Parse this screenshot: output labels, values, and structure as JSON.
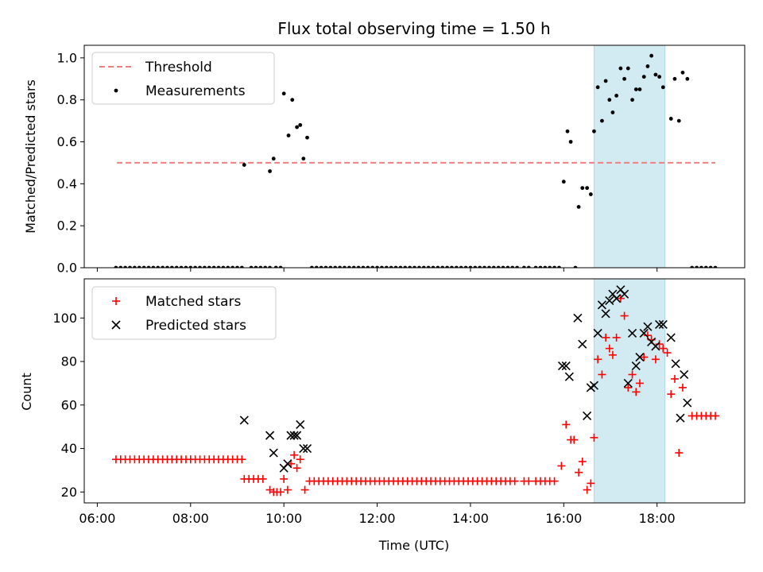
{
  "chart_data": {
    "title": "Flux total observing time = 1.50 h",
    "xlabel": "Time (UTC)",
    "x_range_hours": [
      5.72,
      19.88
    ],
    "x_ticks": [
      {
        "h": 6,
        "label": "06:00"
      },
      {
        "h": 8,
        "label": "08:00"
      },
      {
        "h": 10,
        "label": "10:00"
      },
      {
        "h": 12,
        "label": "12:00"
      },
      {
        "h": 14,
        "label": "14:00"
      },
      {
        "h": 16,
        "label": "16:00"
      },
      {
        "h": 18,
        "label": "18:00"
      }
    ],
    "shaded_span_hours": [
      16.65,
      18.17
    ],
    "shade_color": "#add8e6",
    "panels": [
      {
        "type": "scatter",
        "ylabel": "Matched/Predicted stars",
        "ylim": [
          0,
          1.06
        ],
        "yticks": [
          0.0,
          0.2,
          0.4,
          0.6,
          0.8,
          1.0
        ],
        "ytick_labels": [
          "0.0",
          "0.2",
          "0.4",
          "0.6",
          "0.8",
          "1.0"
        ],
        "legend": [
          {
            "label": "Threshold",
            "style": "dashed-line",
            "color": "#f08080"
          },
          {
            "label": "Measurements",
            "style": "dot",
            "color": "#000000"
          }
        ],
        "threshold": {
          "value": 0.5,
          "x_start": 6.42,
          "x_end": 19.25
        },
        "zeros_hours": [
          [
            6.4,
            9.1,
            0.1
          ],
          [
            9.3,
            9.72,
            0.1
          ],
          [
            9.83,
            9.93,
            0.1
          ],
          [
            10.6,
            15.0,
            0.1
          ],
          [
            15.15,
            15.25,
            0.1
          ],
          [
            15.4,
            15.95,
            0.1
          ],
          [
            16.25,
            16.25,
            0.1
          ],
          [
            18.75,
            19.25,
            0.1
          ]
        ],
        "measurements": [
          [
            9.15,
            0.49
          ],
          [
            9.7,
            0.46
          ],
          [
            9.78,
            0.52
          ],
          [
            10.0,
            0.83
          ],
          [
            10.1,
            0.63
          ],
          [
            10.18,
            0.8
          ],
          [
            10.28,
            0.67
          ],
          [
            10.35,
            0.68
          ],
          [
            10.42,
            0.52
          ],
          [
            10.5,
            0.62
          ],
          [
            16.0,
            0.41
          ],
          [
            16.08,
            0.65
          ],
          [
            16.15,
            0.6
          ],
          [
            16.32,
            0.29
          ],
          [
            16.4,
            0.38
          ],
          [
            16.5,
            0.38
          ],
          [
            16.58,
            0.35
          ],
          [
            16.65,
            0.65
          ],
          [
            16.73,
            0.86
          ],
          [
            16.82,
            0.7
          ],
          [
            16.9,
            0.89
          ],
          [
            16.98,
            0.8
          ],
          [
            17.05,
            0.74
          ],
          [
            17.13,
            0.82
          ],
          [
            17.22,
            0.95
          ],
          [
            17.3,
            0.9
          ],
          [
            17.38,
            0.95
          ],
          [
            17.47,
            0.8
          ],
          [
            17.55,
            0.85
          ],
          [
            17.63,
            0.85
          ],
          [
            17.72,
            0.91
          ],
          [
            17.8,
            0.96
          ],
          [
            17.88,
            1.01
          ],
          [
            17.97,
            0.92
          ],
          [
            18.05,
            0.91
          ],
          [
            18.13,
            0.86
          ],
          [
            18.3,
            0.71
          ],
          [
            18.38,
            0.9
          ],
          [
            18.47,
            0.7
          ],
          [
            18.55,
            0.93
          ],
          [
            18.65,
            0.9
          ]
        ]
      },
      {
        "type": "scatter",
        "ylabel": "Count",
        "ylim": [
          15,
          118
        ],
        "yticks": [
          20,
          40,
          60,
          80,
          100
        ],
        "ytick_labels": [
          "20",
          "40",
          "60",
          "80",
          "100"
        ],
        "legend": [
          {
            "label": "Matched stars",
            "style": "plus",
            "color": "#ff0000"
          },
          {
            "label": "Predicted stars",
            "style": "x",
            "color": "#000000"
          }
        ],
        "matched_runs": [
          [
            6.4,
            9.1,
            0.1,
            35
          ],
          [
            9.15,
            9.6,
            0.1,
            26
          ],
          [
            10.55,
            15.0,
            0.1,
            25
          ],
          [
            15.15,
            15.25,
            0.1,
            25
          ],
          [
            15.4,
            15.85,
            0.1,
            25
          ],
          [
            18.75,
            19.25,
            0.1,
            55
          ]
        ],
        "matched_points": [
          [
            9.7,
            21
          ],
          [
            9.78,
            20
          ],
          [
            9.85,
            20
          ],
          [
            9.93,
            20
          ],
          [
            10.0,
            26
          ],
          [
            10.08,
            21
          ],
          [
            10.15,
            33
          ],
          [
            10.22,
            37
          ],
          [
            10.28,
            31
          ],
          [
            10.35,
            35
          ],
          [
            10.45,
            21
          ],
          [
            15.95,
            32
          ],
          [
            16.05,
            51
          ],
          [
            16.15,
            44
          ],
          [
            16.22,
            44
          ],
          [
            16.32,
            29
          ],
          [
            16.4,
            34
          ],
          [
            16.5,
            21
          ],
          [
            16.58,
            24
          ],
          [
            16.65,
            45
          ],
          [
            16.73,
            81
          ],
          [
            16.82,
            74
          ],
          [
            16.9,
            91
          ],
          [
            16.98,
            86
          ],
          [
            17.05,
            83
          ],
          [
            17.13,
            91
          ],
          [
            17.22,
            109
          ],
          [
            17.3,
            101
          ],
          [
            17.38,
            68
          ],
          [
            17.47,
            74
          ],
          [
            17.55,
            66
          ],
          [
            17.63,
            70
          ],
          [
            17.72,
            82
          ],
          [
            17.8,
            92
          ],
          [
            17.88,
            90
          ],
          [
            17.97,
            81
          ],
          [
            18.05,
            88
          ],
          [
            18.13,
            86
          ],
          [
            18.22,
            84
          ],
          [
            18.3,
            65
          ],
          [
            18.38,
            72
          ],
          [
            18.47,
            38
          ],
          [
            18.55,
            68
          ]
        ],
        "predicted_points": [
          [
            9.15,
            53
          ],
          [
            9.7,
            46
          ],
          [
            9.78,
            38
          ],
          [
            10.0,
            31
          ],
          [
            10.08,
            33
          ],
          [
            10.15,
            46
          ],
          [
            10.22,
            46
          ],
          [
            10.28,
            46
          ],
          [
            10.35,
            51
          ],
          [
            10.42,
            40
          ],
          [
            10.5,
            40
          ],
          [
            15.97,
            78
          ],
          [
            16.05,
            78
          ],
          [
            16.12,
            73
          ],
          [
            16.3,
            100
          ],
          [
            16.4,
            88
          ],
          [
            16.5,
            55
          ],
          [
            16.58,
            68
          ],
          [
            16.65,
            69
          ],
          [
            16.73,
            93
          ],
          [
            16.82,
            106
          ],
          [
            16.9,
            102
          ],
          [
            16.98,
            108
          ],
          [
            17.05,
            111
          ],
          [
            17.13,
            109
          ],
          [
            17.22,
            113
          ],
          [
            17.3,
            111
          ],
          [
            17.38,
            70
          ],
          [
            17.47,
            93
          ],
          [
            17.55,
            78
          ],
          [
            17.63,
            82
          ],
          [
            17.72,
            93
          ],
          [
            17.8,
            96
          ],
          [
            17.88,
            89
          ],
          [
            17.97,
            87
          ],
          [
            18.05,
            97
          ],
          [
            18.13,
            97
          ],
          [
            18.3,
            91
          ],
          [
            18.4,
            79
          ],
          [
            18.5,
            54
          ],
          [
            18.58,
            74
          ],
          [
            18.65,
            61
          ]
        ]
      }
    ]
  }
}
